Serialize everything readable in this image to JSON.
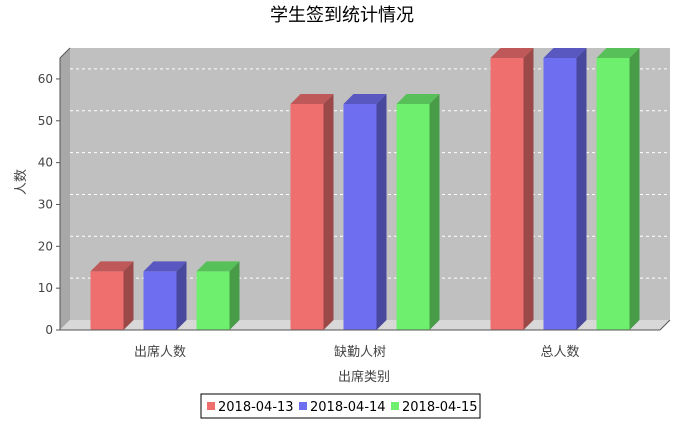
{
  "chart_data": {
    "type": "bar",
    "title": "学生签到统计情况",
    "xlabel": "出席类别",
    "ylabel": "人数",
    "categories": [
      "出席人数",
      "缺勤人树",
      "总人数"
    ],
    "series": [
      {
        "name": "2018-04-13",
        "color": "#ef6e6e",
        "values": [
          14,
          54,
          65
        ]
      },
      {
        "name": "2018-04-14",
        "color": "#6e6ef0",
        "values": [
          14,
          54,
          65
        ]
      },
      {
        "name": "2018-04-15",
        "color": "#6ef06e",
        "values": [
          14,
          54,
          65
        ]
      }
    ],
    "ylim": [
      0,
      65
    ],
    "yticks": [
      0,
      10,
      20,
      30,
      40,
      50,
      60
    ],
    "grid": true,
    "render_3d": true,
    "plot_background": "#c0c0c0",
    "legend_position": "bottom"
  }
}
